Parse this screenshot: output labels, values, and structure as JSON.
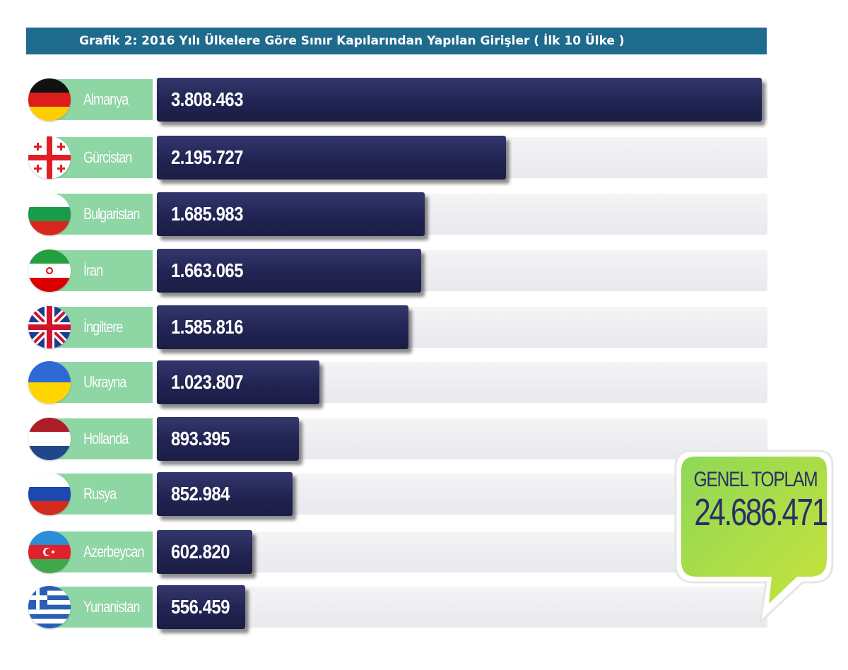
{
  "title": "Grafik 2: 2016 Yılı Ülkelere Göre Sınır Kapılarından Yapılan Girişler ( İlk 10 Ülke )",
  "chart_data": {
    "type": "bar",
    "orientation": "horizontal",
    "title": "Grafik 2: 2016 Yılı Ülkelere Göre Sınır Kapılarından Yapılan Girişler ( İlk 10 Ülke )",
    "categories": [
      "Almanya",
      "Gürcistan",
      "Bulgaristan",
      "İran",
      "İngiltere",
      "Ukrayna",
      "Hollanda",
      "Rusya",
      "Azerbeycan",
      "Yunanistan"
    ],
    "values": [
      3808463,
      2195727,
      1685983,
      1663065,
      1585816,
      1023807,
      893395,
      852984,
      602820,
      556459
    ],
    "value_labels": [
      "3.808.463",
      "2.195.727",
      "1.685.983",
      "1.663.065",
      "1.585.816",
      "1.023.807",
      "893.395",
      "852.984",
      "602.820",
      "556.459"
    ],
    "flags": [
      "germany-flag-icon",
      "georgia-flag-icon",
      "bulgaria-flag-icon",
      "iran-flag-icon",
      "uk-flag-icon",
      "ukraine-flag-icon",
      "netherlands-flag-icon",
      "russia-flag-icon",
      "azerbaijan-flag-icon",
      "greece-flag-icon"
    ],
    "xlim": [
      0,
      3808463
    ],
    "grid": false,
    "legend": "none"
  },
  "total": {
    "label": "GENEL TOPLAM",
    "value": "24.686.471"
  },
  "colors": {
    "title_bar": "#1f6b8e",
    "bar": "#232654",
    "label_box": "#8ed7a5",
    "callout_green_top": "#8fd857",
    "callout_green_bottom": "#c6e23b",
    "callout_text": "#2b2f63"
  }
}
